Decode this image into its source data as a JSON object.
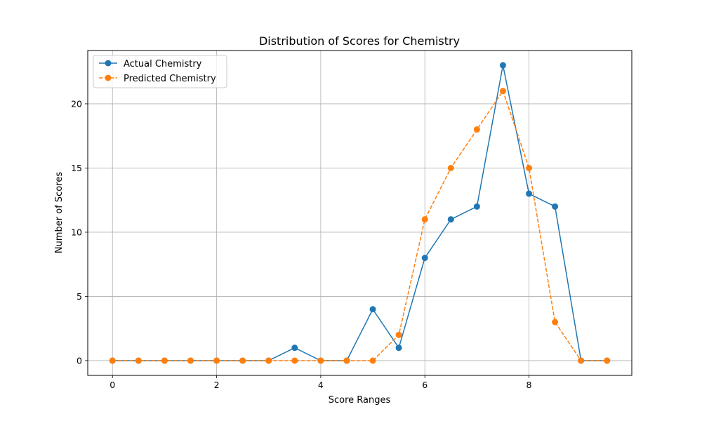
{
  "chart_data": {
    "type": "line",
    "title": "Distribution of Scores for Chemistry",
    "xlabel": "Score Ranges",
    "ylabel": "Number of Scores",
    "xlim": [
      -0.475,
      9.975
    ],
    "ylim": [
      -1.15,
      24.15
    ],
    "xticks": [
      0,
      2,
      4,
      6,
      8
    ],
    "yticks": [
      0,
      5,
      10,
      15,
      20
    ],
    "grid": true,
    "legend_position": "top-left",
    "x": [
      0,
      0.5,
      1,
      1.5,
      2,
      2.5,
      3,
      3.5,
      4,
      4.5,
      5,
      5.5,
      6,
      6.5,
      7,
      7.5,
      8,
      8.5,
      9,
      9.5
    ],
    "series": [
      {
        "name": "Actual Chemistry",
        "color": "#1f77b4",
        "linestyle": "solid",
        "marker": "circle",
        "values": [
          0,
          0,
          0,
          0,
          0,
          0,
          0,
          1,
          0,
          0,
          4,
          1,
          8,
          11,
          12,
          23,
          13,
          12,
          0,
          0
        ]
      },
      {
        "name": "Predicted Chemistry",
        "color": "#ff7f0e",
        "linestyle": "dashed",
        "marker": "circle",
        "values": [
          0,
          0,
          0,
          0,
          0,
          0,
          0,
          0,
          0,
          0,
          0,
          2,
          11,
          15,
          18,
          21,
          15,
          3,
          0,
          0
        ]
      }
    ]
  }
}
